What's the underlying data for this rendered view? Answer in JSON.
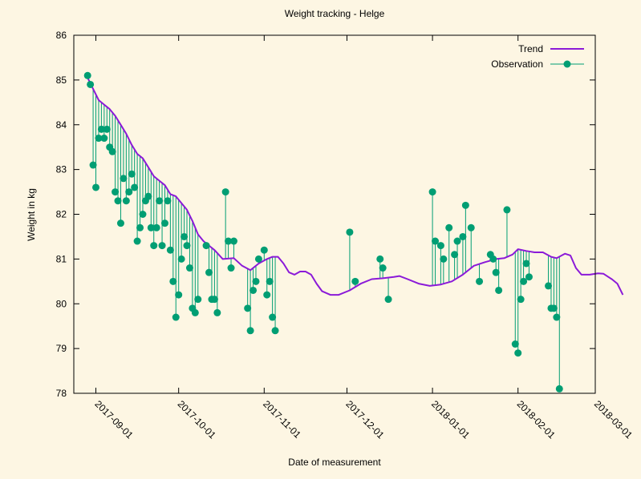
{
  "chart_data": {
    "type": "line",
    "title": "Weight tracking - Helge",
    "xlabel": "Date of measurement",
    "ylabel": "Weight in kg",
    "x_type": "date",
    "xlim": [
      "2017-08-24",
      "2018-03-01"
    ],
    "ylim": [
      78,
      86
    ],
    "y_ticks": [
      78,
      79,
      80,
      81,
      82,
      83,
      84,
      85,
      86
    ],
    "x_ticks": [
      "2017-09-01",
      "2017-10-01",
      "2017-11-01",
      "2017-12-01",
      "2018-01-01",
      "2018-02-01",
      "2018-03-01"
    ],
    "grid": false,
    "legend_position": "top-right",
    "series": [
      {
        "name": "Trend",
        "style": "line",
        "color": "#8b1ad8",
        "points": [
          [
            "2017-08-29",
            85.05
          ],
          [
            "2017-08-31",
            84.8
          ],
          [
            "2017-09-02",
            84.55
          ],
          [
            "2017-09-04",
            84.45
          ],
          [
            "2017-09-06",
            84.35
          ],
          [
            "2017-09-08",
            84.2
          ],
          [
            "2017-09-10",
            84.0
          ],
          [
            "2017-09-12",
            83.8
          ],
          [
            "2017-09-14",
            83.55
          ],
          [
            "2017-09-16",
            83.35
          ],
          [
            "2017-09-18",
            83.25
          ],
          [
            "2017-09-20",
            83.05
          ],
          [
            "2017-09-22",
            82.85
          ],
          [
            "2017-09-24",
            82.75
          ],
          [
            "2017-09-26",
            82.65
          ],
          [
            "2017-09-28",
            82.45
          ],
          [
            "2017-09-30",
            82.4
          ],
          [
            "2017-10-02",
            82.25
          ],
          [
            "2017-10-04",
            82.1
          ],
          [
            "2017-10-06",
            81.85
          ],
          [
            "2017-10-08",
            81.55
          ],
          [
            "2017-10-10",
            81.4
          ],
          [
            "2017-10-12",
            81.3
          ],
          [
            "2017-10-14",
            81.2
          ],
          [
            "2017-10-17",
            81.0
          ],
          [
            "2017-10-21",
            81.02
          ],
          [
            "2017-10-24",
            80.85
          ],
          [
            "2017-10-27",
            80.75
          ],
          [
            "2017-10-30",
            80.9
          ],
          [
            "2017-11-02",
            81.0
          ],
          [
            "2017-11-04",
            81.05
          ],
          [
            "2017-11-06",
            81.05
          ],
          [
            "2017-11-08",
            80.9
          ],
          [
            "2017-11-10",
            80.7
          ],
          [
            "2017-11-12",
            80.65
          ],
          [
            "2017-11-14",
            80.72
          ],
          [
            "2017-11-16",
            80.72
          ],
          [
            "2017-11-18",
            80.65
          ],
          [
            "2017-11-20",
            80.45
          ],
          [
            "2017-11-22",
            80.28
          ],
          [
            "2017-11-25",
            80.2
          ],
          [
            "2017-11-28",
            80.2
          ],
          [
            "2017-12-02",
            80.3
          ],
          [
            "2017-12-06",
            80.45
          ],
          [
            "2017-12-10",
            80.55
          ],
          [
            "2017-12-14",
            80.57
          ],
          [
            "2017-12-18",
            80.6
          ],
          [
            "2017-12-20",
            80.62
          ],
          [
            "2017-12-23",
            80.55
          ],
          [
            "2017-12-27",
            80.45
          ],
          [
            "2017-12-31",
            80.4
          ],
          [
            "2018-01-04",
            80.43
          ],
          [
            "2018-01-08",
            80.5
          ],
          [
            "2018-01-12",
            80.65
          ],
          [
            "2018-01-16",
            80.85
          ],
          [
            "2018-01-20",
            80.93
          ],
          [
            "2018-01-24",
            81.0
          ],
          [
            "2018-01-27",
            81.02
          ],
          [
            "2018-01-30",
            81.1
          ],
          [
            "2018-02-01",
            81.22
          ],
          [
            "2018-02-04",
            81.18
          ],
          [
            "2018-02-07",
            81.15
          ],
          [
            "2018-02-10",
            81.15
          ],
          [
            "2018-02-13",
            81.05
          ],
          [
            "2018-02-15",
            81.02
          ],
          [
            "2018-02-18",
            81.12
          ],
          [
            "2018-02-20",
            81.08
          ],
          [
            "2018-02-22",
            80.8
          ],
          [
            "2018-02-24",
            80.65
          ],
          [
            "2018-02-27",
            80.65
          ],
          [
            "2018-03-02",
            80.68
          ],
          [
            "2018-03-04",
            80.67
          ],
          [
            "2018-03-07",
            80.55
          ],
          [
            "2018-03-09",
            80.45
          ],
          [
            "2018-03-11",
            80.2
          ]
        ]
      },
      {
        "name": "Observation",
        "style": "points-with-impulses",
        "color": "#009e73",
        "points": [
          [
            "2017-08-29",
            85.1
          ],
          [
            "2017-08-30",
            84.9
          ],
          [
            "2017-08-31",
            83.1
          ],
          [
            "2017-09-01",
            82.6
          ],
          [
            "2017-09-02",
            83.7
          ],
          [
            "2017-09-03",
            83.9
          ],
          [
            "2017-09-04",
            83.7
          ],
          [
            "2017-09-05",
            83.9
          ],
          [
            "2017-09-06",
            83.5
          ],
          [
            "2017-09-07",
            83.4
          ],
          [
            "2017-09-08",
            82.5
          ],
          [
            "2017-09-09",
            82.3
          ],
          [
            "2017-09-10",
            81.8
          ],
          [
            "2017-09-11",
            82.8
          ],
          [
            "2017-09-12",
            82.3
          ],
          [
            "2017-09-13",
            82.5
          ],
          [
            "2017-09-14",
            82.9
          ],
          [
            "2017-09-15",
            82.6
          ],
          [
            "2017-09-16",
            81.4
          ],
          [
            "2017-09-17",
            81.7
          ],
          [
            "2017-09-18",
            82.0
          ],
          [
            "2017-09-19",
            82.3
          ],
          [
            "2017-09-20",
            82.4
          ],
          [
            "2017-09-21",
            81.7
          ],
          [
            "2017-09-22",
            81.3
          ],
          [
            "2017-09-23",
            81.7
          ],
          [
            "2017-09-24",
            82.3
          ],
          [
            "2017-09-25",
            81.3
          ],
          [
            "2017-09-26",
            81.8
          ],
          [
            "2017-09-27",
            82.3
          ],
          [
            "2017-09-28",
            81.2
          ],
          [
            "2017-09-29",
            80.5
          ],
          [
            "2017-09-30",
            79.7
          ],
          [
            "2017-10-01",
            80.2
          ],
          [
            "2017-10-02",
            81.0
          ],
          [
            "2017-10-03",
            81.5
          ],
          [
            "2017-10-04",
            81.3
          ],
          [
            "2017-10-05",
            80.8
          ],
          [
            "2017-10-06",
            79.9
          ],
          [
            "2017-10-07",
            79.8
          ],
          [
            "2017-10-08",
            80.1
          ],
          [
            "2017-10-11",
            81.3
          ],
          [
            "2017-10-12",
            80.7
          ],
          [
            "2017-10-13",
            80.1
          ],
          [
            "2017-10-14",
            80.1
          ],
          [
            "2017-10-15",
            79.8
          ],
          [
            "2017-10-18",
            82.5
          ],
          [
            "2017-10-19",
            81.4
          ],
          [
            "2017-10-20",
            80.8
          ],
          [
            "2017-10-21",
            81.4
          ],
          [
            "2017-10-26",
            79.9
          ],
          [
            "2017-10-27",
            79.4
          ],
          [
            "2017-10-28",
            80.3
          ],
          [
            "2017-10-29",
            80.5
          ],
          [
            "2017-10-30",
            81.0
          ],
          [
            "2017-11-01",
            81.2
          ],
          [
            "2017-11-02",
            80.2
          ],
          [
            "2017-11-03",
            80.5
          ],
          [
            "2017-11-04",
            79.7
          ],
          [
            "2017-11-05",
            79.4
          ],
          [
            "2017-12-02",
            81.6
          ],
          [
            "2017-12-04",
            80.5
          ],
          [
            "2017-12-13",
            81.0
          ],
          [
            "2017-12-14",
            80.8
          ],
          [
            "2017-12-16",
            80.1
          ],
          [
            "2018-01-01",
            82.5
          ],
          [
            "2018-01-02",
            81.4
          ],
          [
            "2018-01-04",
            81.3
          ],
          [
            "2018-01-05",
            81.0
          ],
          [
            "2018-01-07",
            81.7
          ],
          [
            "2018-01-09",
            81.1
          ],
          [
            "2018-01-10",
            81.4
          ],
          [
            "2018-01-12",
            81.5
          ],
          [
            "2018-01-13",
            82.2
          ],
          [
            "2018-01-15",
            81.7
          ],
          [
            "2018-01-18",
            80.5
          ],
          [
            "2018-01-22",
            81.1
          ],
          [
            "2018-01-23",
            81.0
          ],
          [
            "2018-01-24",
            80.7
          ],
          [
            "2018-01-25",
            80.3
          ],
          [
            "2018-01-28",
            82.1
          ],
          [
            "2018-01-31",
            79.1
          ],
          [
            "2018-02-01",
            78.9
          ],
          [
            "2018-02-02",
            80.1
          ],
          [
            "2018-02-03",
            80.5
          ],
          [
            "2018-02-04",
            80.9
          ],
          [
            "2018-02-05",
            80.6
          ],
          [
            "2018-02-12",
            80.4
          ],
          [
            "2018-02-13",
            79.9
          ],
          [
            "2018-02-14",
            79.9
          ],
          [
            "2018-02-15",
            79.7
          ],
          [
            "2018-02-16",
            78.1
          ]
        ]
      }
    ]
  }
}
